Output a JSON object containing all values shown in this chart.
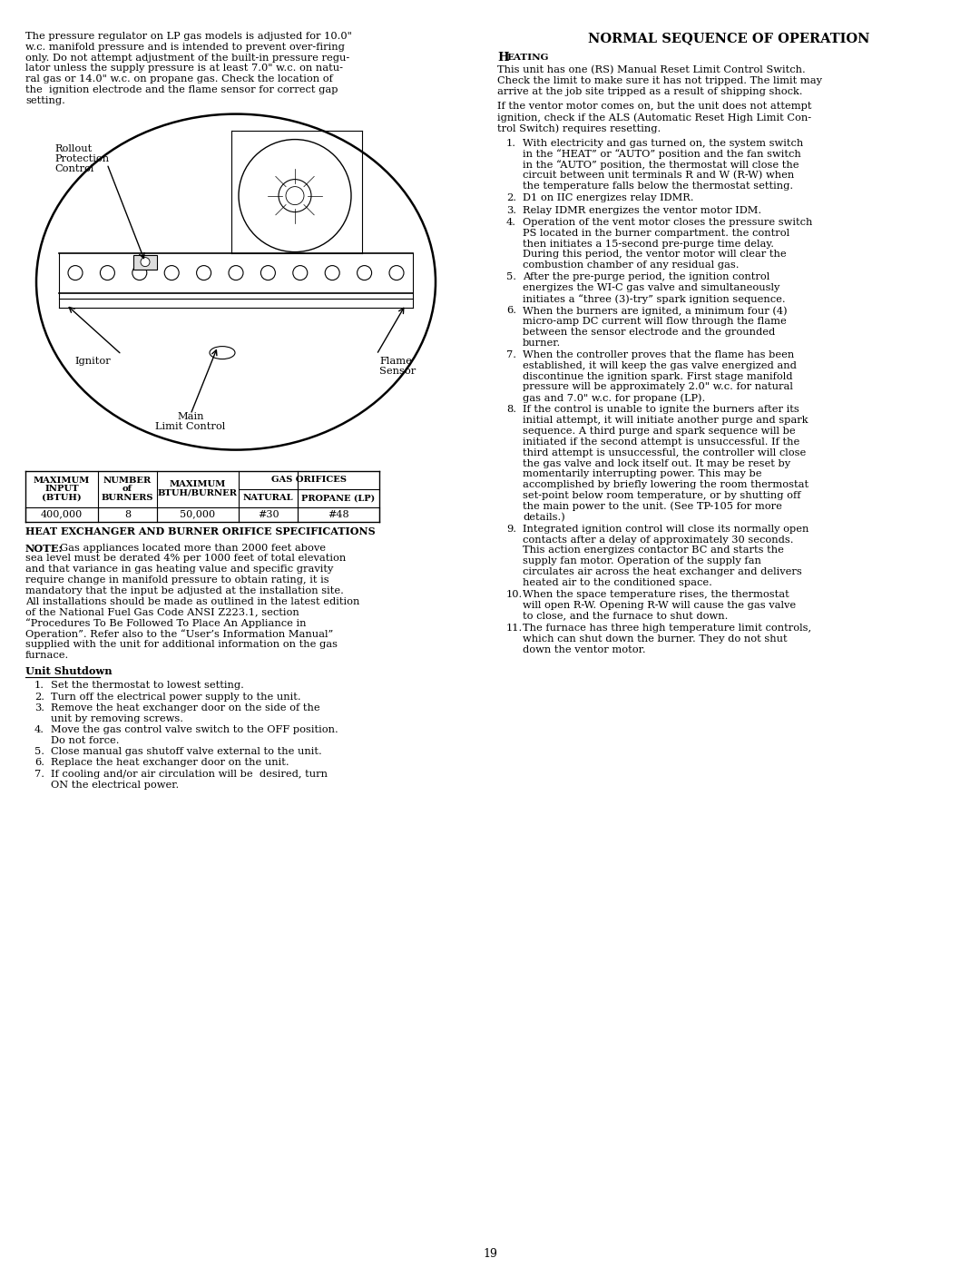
{
  "page_number": "19",
  "bg_color": "#ffffff",
  "text_color": "#000000",
  "left_col": {
    "intro_lines": [
      "The pressure regulator on LP gas models is adjusted for 10.0\"",
      "w.c. manifold pressure and is intended to prevent over-firing",
      "only. Do not attempt adjustment of the built-in pressure regu-",
      "lator unless the supply pressure is at least 7.0\" w.c. on natu-",
      "ral gas or 14.0\" w.c. on propane gas. Check the location of",
      "the  ignition electrode and the flame sensor for correct gap",
      "setting."
    ],
    "table_caption": "HEAT EXCHANGER AND BURNER ORIFICE SPECIFICATIONS",
    "table_col_widths": [
      80,
      65,
      90,
      65,
      90
    ],
    "table_data_values": [
      "400,000",
      "8",
      "50,000",
      "#30",
      "#48"
    ],
    "note_lines": [
      "Gas appliances located more than 2000 feet above",
      "sea level must be derated 4% per 1000 feet of total elevation",
      "and that variance in gas heating value and specific gravity",
      "require change in manifold pressure to obtain rating, it is",
      "mandatory that the input be adjusted at the installation site.",
      "All installations should be made as outlined in the latest edition",
      "of the National Fuel Gas Code ANSI Z223.1, section",
      "“Procedures To Be Followed To Place An Appliance in",
      "Operation”. Refer also to the “User’s Information Manual”",
      "supplied with the unit for additional information on the gas",
      "furnace."
    ],
    "shutdown_title": "Unit Shutdown",
    "shutdown_items": [
      [
        "Set the thermostat to lowest setting."
      ],
      [
        "Turn off the electrical power supply to the unit."
      ],
      [
        "Remove the heat exchanger door on the side of the",
        "unit by removing screws."
      ],
      [
        "Move the gas control valve switch to the OFF position.",
        "Do not force."
      ],
      [
        "Close manual gas shutoff valve external to the unit."
      ],
      [
        "Replace the heat exchanger door on the unit."
      ],
      [
        "If cooling and/or air circulation will be  desired, turn",
        "ON the electrical power."
      ]
    ]
  },
  "right_col": {
    "title": "NORMAL SEQUENCE OF OPERATION",
    "heating_heading_big": "H",
    "heating_heading_small": "EATING",
    "heating_intro1": [
      "This unit has one (RS) Manual Reset Limit Control Switch.",
      "Check the limit to make sure it has not tripped. The limit may",
      "arrive at the job site tripped as a result of shipping shock."
    ],
    "heating_intro2": [
      "If the ventor motor comes on, but the unit does not attempt",
      "ignition, check if the ALS (Automatic Reset High Limit Con-",
      "trol Switch) requires resetting."
    ],
    "heating_items": [
      [
        "With electricity and gas turned on, the system switch",
        "in the “HEAT” or “AUTO” position and the fan switch",
        "in the “AUTO” position, the thermostat will close the",
        "circuit between unit terminals R and W (R-W) when",
        "the temperature falls below the thermostat setting."
      ],
      [
        "D1 on IIC energizes relay IDMR."
      ],
      [
        "Relay IDMR energizes the ventor motor IDM."
      ],
      [
        "Operation of the vent motor closes the pressure switch",
        "PS located in the burner compartment. the control",
        "then initiates a 15-second pre-purge time delay.",
        "During this period, the ventor motor will clear the",
        "combustion chamber of any residual gas."
      ],
      [
        "After the pre-purge period, the ignition control",
        "energizes the WI-C gas valve and simultaneously",
        "initiates a “three (3)-try” spark ignition sequence."
      ],
      [
        "When the burners are ignited, a minimum four (4)",
        "micro-amp DC current will flow through the flame",
        "between the sensor electrode and the grounded",
        "burner."
      ],
      [
        "When the controller proves that the flame has been",
        "established, it will keep the gas valve energized and",
        "discontinue the ignition spark. First stage manifold",
        "pressure will be approximately 2.0\" w.c. for natural",
        "gas and 7.0\" w.c. for propane (LP)."
      ],
      [
        "If the control is unable to ignite the burners after its",
        "initial attempt, it will initiate another purge and spark",
        "sequence. A third purge and spark sequence will be",
        "initiated if the second attempt is unsuccessful. If the",
        "third attempt is unsuccessful, the controller will close",
        "the gas valve and lock itself out. It may be reset by",
        "momentarily interrupting power. This may be",
        "accomplished by briefly lowering the room thermostat",
        "set-point below room temperature, or by shutting off",
        "the main power to the unit. (See TP-105 for more",
        "details.)"
      ],
      [
        "Integrated ignition control will close its normally open",
        "contacts after a delay of approximately 30 seconds.",
        "This action energizes contactor BC and starts the",
        "supply fan motor. Operation of the supply fan",
        "circulates air across the heat exchanger and delivers",
        "heated air to the conditioned space."
      ],
      [
        "When the space temperature rises, the thermostat",
        "will open R-W. Opening R-W will cause the gas valve",
        "to close, and the furnace to shut down."
      ],
      [
        "The furnace has three high temperature limit controls,",
        "which can shut down the burner. They do not shut",
        "down the ventor motor."
      ]
    ]
  }
}
